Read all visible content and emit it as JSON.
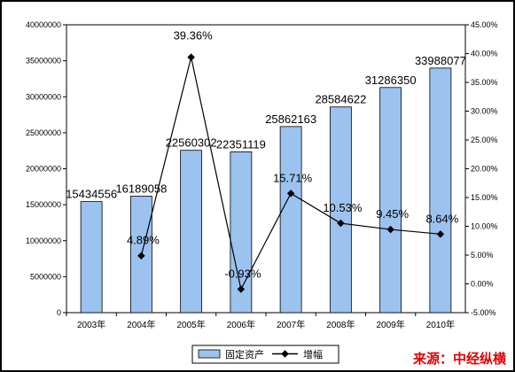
{
  "chart_data": {
    "type": "bar",
    "categories": [
      "2003年",
      "2004年",
      "2005年",
      "2006年",
      "2007年",
      "2008年",
      "2009年",
      "2010年"
    ],
    "series": [
      {
        "name": "固定资产",
        "type": "bar",
        "axis": "left",
        "color": "#9cc3ef",
        "values": [
          15434556,
          16189058,
          22560302,
          22351119,
          25862163,
          28584622,
          31286350,
          33988077
        ],
        "labels": [
          "15434556",
          "16189058",
          "22560302",
          "22351119",
          "25862163",
          "28584622",
          "31286350",
          "33988077"
        ]
      },
      {
        "name": "增幅",
        "type": "line",
        "axis": "right",
        "color": "#000000",
        "values": [
          null,
          4.89,
          39.36,
          -0.93,
          15.71,
          10.53,
          9.45,
          8.64
        ],
        "labels": [
          "",
          "4.89%",
          "39.36%",
          "-0.93%",
          "15.71%",
          "10.53%",
          "9.45%",
          "8.64%"
        ]
      }
    ],
    "y_left": {
      "range": [
        0,
        40000000
      ],
      "ticks": [
        "0",
        "5000000",
        "10000000",
        "15000000",
        "20000000",
        "25000000",
        "30000000",
        "35000000",
        "40000000"
      ]
    },
    "y_right": {
      "range": [
        -5,
        45
      ],
      "ticks": [
        "-5.00%",
        "0.00%",
        "5.00%",
        "10.00%",
        "15.00%",
        "20.00%",
        "25.00%",
        "30.00%",
        "35.00%",
        "40.00%",
        "45.00%"
      ]
    },
    "grid": false,
    "legend": "bottom"
  },
  "source": "来源：中经纵横"
}
